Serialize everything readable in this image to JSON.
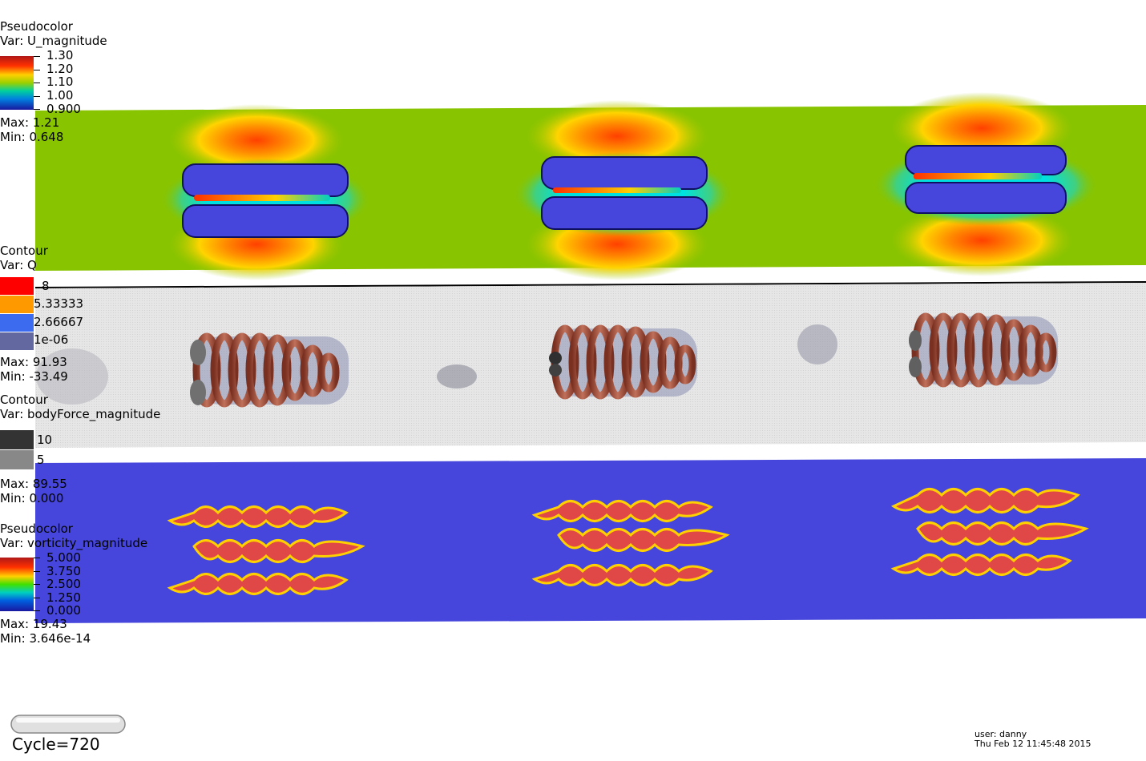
{
  "legends": {
    "u_magnitude": {
      "plot_type": "Pseudocolor",
      "var": "Var: U_magnitude",
      "ticks": [
        "1.30",
        "1.20",
        "1.10",
        "1.00",
        "0.900"
      ],
      "max": "Max:  1.21",
      "min": "Min:  0.648"
    },
    "q": {
      "plot_type": "Contour",
      "var": "Var: Q",
      "levels": [
        "8",
        "5.33333",
        "2.66667",
        "1e-06"
      ],
      "level_colors": [
        "#ff0000",
        "#ff9900",
        "#3c6bf0",
        "#6468a0"
      ],
      "max": "Max:  91.93",
      "min": "Min:  -33.49"
    },
    "body_force": {
      "plot_type": "Contour",
      "var": "Var: bodyForce_magnitude",
      "levels": [
        "10",
        "5"
      ],
      "level_colors": [
        "#333333",
        "#888888"
      ],
      "max": "Max:  89.55",
      "min": "Min:  0.000"
    },
    "vorticity": {
      "plot_type": "Pseudocolor",
      "var": "Var: vorticity_magnitude",
      "ticks": [
        "5.000",
        "3.750",
        "2.500",
        "1.250",
        "0.000"
      ],
      "max": "Max:  19.43",
      "min": "Min:  3.646e-14"
    }
  },
  "time_slider": {
    "label": "Cycle=720"
  },
  "footer": {
    "user": "user: danny",
    "date": "Thu Feb 12 11:45:48 2015"
  },
  "colors": {
    "background_green": "#88c400",
    "vortex_blue": "#4646dc",
    "vorticity_bg": "#4646dc",
    "q_panel_gray": "#e3e3e3",
    "turbine_brown": "#a85a40"
  }
}
